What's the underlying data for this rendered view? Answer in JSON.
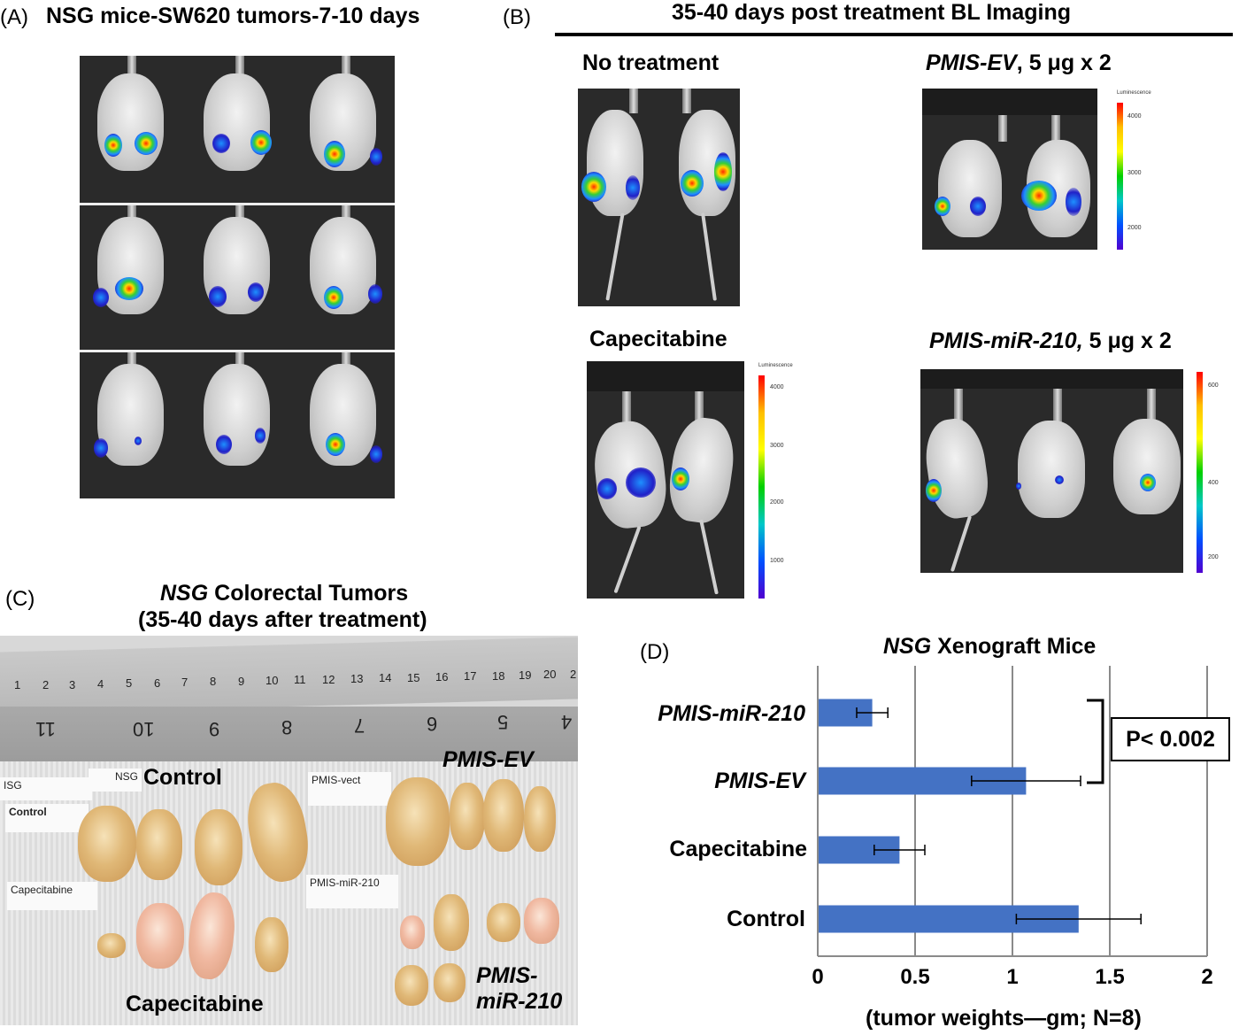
{
  "panelA": {
    "label": "(A)",
    "title": "NSG mice-SW620 tumors-7-10 days"
  },
  "panelB": {
    "label": "(B)",
    "title": "35-40 days post treatment BL Imaging",
    "groups": {
      "no_treatment": "No treatment",
      "pmis_ev_name": "PMIS-EV",
      "pmis_ev_dose": ", 5 μg x 2",
      "capecitabine": "Capecitabine",
      "pmis_mir_name": "PMIS-miR-210,",
      "pmis_mir_dose": " 5 μg x 2"
    },
    "scale_title": "Luminescence",
    "scale_ev_ticks": [
      "4000",
      "3000",
      "2000"
    ],
    "scale_cap_ticks": [
      "4000",
      "3000",
      "2000",
      "1000"
    ],
    "scale_mir_ticks": [
      "600",
      "400",
      "200"
    ]
  },
  "panelC": {
    "label": "(C)",
    "title_italic": "NSG",
    "title_rest": " Colorectal Tumors",
    "subtitle": "(35-40 days after treatment)",
    "ruler_top_ticks": [
      "1",
      "2",
      "3",
      "4",
      "5",
      "6",
      "7",
      "8",
      "9",
      "10",
      "11",
      "12",
      "13",
      "14",
      "15",
      "16",
      "17",
      "18",
      "19",
      "20",
      "2"
    ],
    "ruler_bottom_ticks": [
      "11",
      "10",
      "9",
      "8",
      "7",
      "6",
      "5",
      "4"
    ],
    "labels": {
      "control": "Control",
      "pmis_ev": "PMIS-EV",
      "capecitabine": "Capecitabine",
      "pmis_mir": "PMIS-miR-210"
    },
    "tags": {
      "nsg_left": "ISG",
      "nsg": "NSG",
      "control": "Control",
      "pmis_vect": "PMIS-vect",
      "capecitabine": "Capecitabine",
      "pmis_mir": "PMIS-miR-210"
    }
  },
  "panelD": {
    "label": "(D)",
    "significance": "P< 0.002"
  },
  "chart_data": {
    "type": "bar",
    "orientation": "horizontal",
    "title_italic": "NSG",
    "title_rest": " Xenograft Mice",
    "xlabel": "(tumor weights—gm; N=8)",
    "categories": [
      "PMIS-miR-210",
      "PMIS-EV",
      "Capecitabine",
      "Control"
    ],
    "category_italic": [
      true,
      true,
      false,
      false
    ],
    "values": [
      0.28,
      1.07,
      0.42,
      1.34
    ],
    "errors": [
      0.08,
      0.28,
      0.13,
      0.32
    ],
    "xlim": [
      0,
      2
    ],
    "xticks": [
      "0",
      "0.5",
      "1",
      "1.5",
      "2"
    ],
    "xtick_values": [
      0,
      0.5,
      1,
      1.5,
      2
    ],
    "grid": true,
    "bar_color": "#4472c4"
  }
}
